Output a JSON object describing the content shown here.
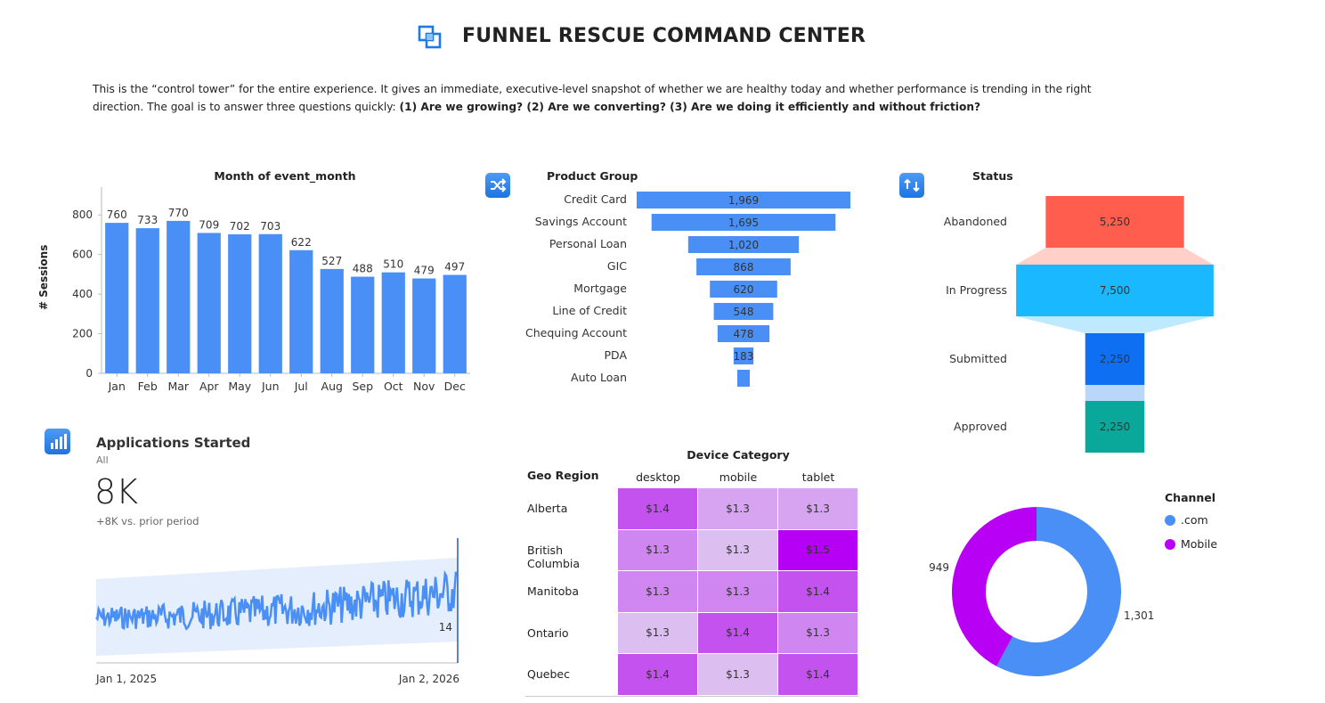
{
  "header": {
    "title": "FUNNEL RESCUE COMMAND CENTER",
    "description_plain": "This is the “control tower” for the entire experience. It gives an immediate, executive-level snapshot of whether we are healthy today and whether performance is trending in the right direction. The goal is to answer three questions quickly: ",
    "description_bold": "(1) Are we growing? (2) Are we converting? (3) Are we doing it efficiently and without friction?"
  },
  "chart_data": [
    {
      "id": "sessions_by_month",
      "type": "bar",
      "title": "Month of event_month",
      "ylabel": "# Sessions",
      "xlabel": "",
      "categories": [
        "Jan",
        "Feb",
        "Mar",
        "Apr",
        "May",
        "Jun",
        "Jul",
        "Aug",
        "Sep",
        "Oct",
        "Nov",
        "Dec"
      ],
      "values": [
        760,
        733,
        770,
        709,
        702,
        703,
        622,
        527,
        488,
        510,
        479,
        497
      ],
      "yticks": [
        0,
        200,
        400,
        600,
        800
      ],
      "ylim": [
        0,
        900
      ],
      "color": "#4a8ff5"
    },
    {
      "id": "product_group_funnel",
      "type": "bar",
      "title": "Product Group",
      "categories": [
        "Credit Card",
        "Savings Account",
        "Personal Loan",
        "GIC",
        "Mortgage",
        "Line of Credit",
        "Chequing Account",
        "PDA",
        "Auto Loan"
      ],
      "values": [
        1969,
        1695,
        1020,
        868,
        620,
        548,
        478,
        183,
        null
      ],
      "labels": [
        "1,969",
        "1,695",
        "1,020",
        "868",
        "620",
        "548",
        "478",
        "183",
        ""
      ],
      "color": "#4a8ff5"
    },
    {
      "id": "status_funnel",
      "type": "bar",
      "title": "Status",
      "categories": [
        "Abandoned",
        "In Progress",
        "Submitted",
        "Approved"
      ],
      "values": [
        5250,
        7500,
        2250,
        2250
      ],
      "labels": [
        "5,250",
        "7,500",
        "2,250",
        "2,250"
      ],
      "colors": [
        "#ff5e4e",
        "#1ab8ff",
        "#0f6ff2",
        "#09a89a"
      ],
      "connector_colors": [
        "#ffcfca",
        "#bfe9ff",
        "#b9d7fb"
      ]
    },
    {
      "id": "applications_started_trend",
      "type": "line",
      "x_start_label": "Jan 1, 2025",
      "x_end_label": "Jan 2, 2026",
      "last_value_label": "14"
    },
    {
      "id": "device_region_heatmap",
      "type": "heatmap",
      "title": "Device Category",
      "row_header": "Geo Region",
      "columns": [
        "desktop",
        "mobile",
        "tablet"
      ],
      "rows": [
        "Alberta",
        "British Columbia",
        "Manitoba",
        "Ontario",
        "Quebec"
      ],
      "values": [
        [
          1.4,
          1.3,
          1.3
        ],
        [
          1.3,
          1.3,
          1.5
        ],
        [
          1.3,
          1.3,
          1.4
        ],
        [
          1.3,
          1.4,
          1.3
        ],
        [
          1.4,
          1.3,
          1.4
        ]
      ],
      "labels": [
        [
          "$1.4",
          "$1.3",
          "$1.3"
        ],
        [
          "$1.3",
          "$1.3",
          "$1.5"
        ],
        [
          "$1.3",
          "$1.3",
          "$1.4"
        ],
        [
          "$1.3",
          "$1.4",
          "$1.3"
        ],
        [
          "$1.4",
          "$1.3",
          "$1.4"
        ]
      ],
      "cell_colors": [
        [
          "#c352ef",
          "#d6a4f0",
          "#d6a4f0"
        ],
        [
          "#d086f0",
          "#dcbff0",
          "#b600f5"
        ],
        [
          "#d086f0",
          "#d086f0",
          "#c352ef"
        ],
        [
          "#dcbff0",
          "#c352ef",
          "#d086f0"
        ],
        [
          "#c352ef",
          "#dcbff0",
          "#c352ef"
        ]
      ]
    },
    {
      "id": "channel_donut",
      "type": "pie",
      "title": "Channel",
      "legend": [
        ".com",
        "Mobile"
      ],
      "values": [
        1301,
        949
      ],
      "labels": [
        "1,301",
        "949"
      ],
      "colors": [
        "#4a8ff5",
        "#b800f5"
      ],
      "legend_position": "top-right"
    }
  ],
  "kpi": {
    "title": "Applications Started",
    "subtitle": "All",
    "value": "8K",
    "delta": "+8K vs. prior period"
  },
  "icons": {
    "header": "overlapping-squares-icon",
    "product": "shuffle-icon",
    "status": "refresh-icon",
    "kpi": "bar-chart-icon"
  }
}
